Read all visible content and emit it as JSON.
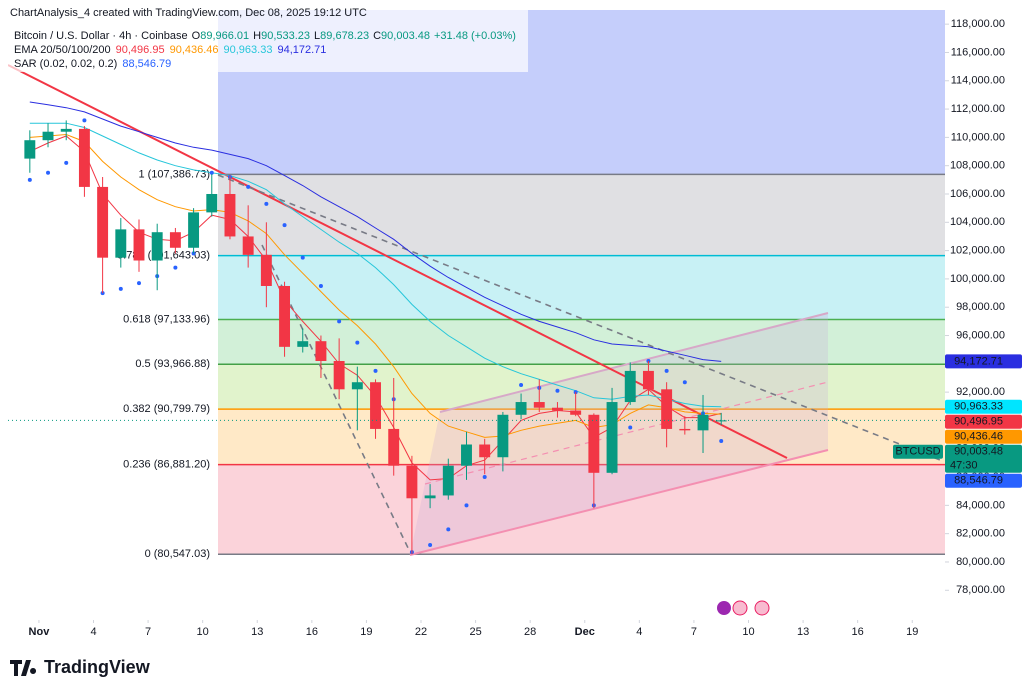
{
  "header": {
    "created": "ChartAnalysis_4 created with TradingView.com, Dec 08, 2025 19:12 UTC"
  },
  "chart_data": {
    "type": "candlestick",
    "title": "Bitcoin / U.S. Dollar · 4h · Coinbase",
    "ohlc_legend": [
      [
        "O",
        "89,966.01"
      ],
      [
        "H",
        "90,533.23"
      ],
      [
        "L",
        "89,678.23"
      ],
      [
        "C",
        "90,003.48"
      ]
    ],
    "change": "+31.48 (+0.03%)",
    "ema_legend": "EMA 20/50/100/200",
    "sar_legend": "SAR (0.02, 0.02, 0.2)",
    "up_color": "#089981",
    "down_color": "#f23645",
    "x": [
      -0.5,
      0.5,
      1.5,
      2.5,
      3.5,
      4.5,
      5.5,
      6.5,
      7.5,
      8.5,
      9.5,
      10.5,
      11.5,
      12.5,
      13.5,
      14.5,
      15.5,
      16.5,
      17.5,
      18.5,
      19.5,
      20.5,
      21.5,
      22.5,
      23.5,
      24.5,
      25.5,
      26.5,
      27.5,
      28.5,
      29.5,
      30.5,
      31.5,
      32.5,
      33.5,
      34.5,
      35.5,
      36.5,
      37.5
    ],
    "open": [
      108500,
      109800,
      110400,
      110600,
      106500,
      101500,
      103500,
      101300,
      103300,
      102200,
      104700,
      106000,
      103000,
      101700,
      99500,
      95200,
      95600,
      94200,
      92200,
      92700,
      89400,
      86800,
      84500,
      84700,
      86800,
      88300,
      87400,
      90400,
      91300,
      90900,
      90700,
      90400,
      86300,
      91300,
      93500,
      92200,
      89400,
      89300,
      89966.01
    ],
    "high": [
      110500,
      111000,
      111200,
      110800,
      107200,
      104300,
      104200,
      103900,
      103600,
      105000,
      107400,
      107300,
      105200,
      104000,
      99800,
      96500,
      96000,
      95800,
      93800,
      92900,
      93000,
      87500,
      85500,
      87300,
      89200,
      88700,
      90600,
      91900,
      92900,
      91300,
      92000,
      90500,
      92300,
      94100,
      94200,
      92700,
      90300,
      91800,
      90533.23
    ],
    "low": [
      107500,
      109300,
      109800,
      105800,
      99000,
      100800,
      100500,
      99200,
      101800,
      101800,
      104400,
      102800,
      100800,
      98000,
      94500,
      94800,
      93000,
      91500,
      89300,
      88700,
      86100,
      80547.03,
      83800,
      84400,
      85800,
      86200,
      86400,
      90100,
      90600,
      90200,
      90300,
      83800,
      86200,
      91100,
      91800,
      88100,
      89000,
      87700,
      89678.23
    ],
    "close": [
      109800,
      110400,
      110600,
      106500,
      101500,
      103500,
      101300,
      103300,
      102200,
      104700,
      106000,
      103000,
      101700,
      99500,
      95200,
      95600,
      94200,
      92200,
      92700,
      89400,
      86800,
      84500,
      84700,
      86800,
      88300,
      87400,
      90400,
      91300,
      90900,
      90700,
      90400,
      86300,
      91300,
      93500,
      92200,
      89400,
      89300,
      90400,
      90003.48
    ],
    "series": [
      {
        "color": "#f23645",
        "last_label": "90,496.95",
        "values": [
          109000,
          109600,
          110100,
          109000,
          106000,
          104500,
          103300,
          102800,
          102700,
          103300,
          104500,
          104200,
          103000,
          101300,
          98500,
          97000,
          95600,
          94000,
          93200,
          91700,
          89500,
          87000,
          85800,
          85900,
          86800,
          87200,
          88600,
          90000,
          90500,
          90700,
          90600,
          88800,
          89500,
          91400,
          92200,
          91000,
          90200,
          90200,
          90496.95
        ]
      },
      {
        "color": "#ff9800",
        "last_label": "90,436.46",
        "values": [
          110000,
          110100,
          110200,
          109700,
          108300,
          107200,
          106300,
          105600,
          105100,
          104800,
          104900,
          104700,
          104100,
          103200,
          101700,
          100400,
          99100,
          97800,
          96700,
          95400,
          93800,
          91900,
          90500,
          89600,
          89200,
          88800,
          88900,
          89300,
          89600,
          89800,
          90000,
          89500,
          89700,
          90500,
          91100,
          90900,
          90600,
          90500,
          90436.46
        ]
      },
      {
        "color": "#26c6da",
        "last_label": "90,963.33",
        "values": [
          111000,
          111000,
          111000,
          110700,
          110100,
          109500,
          108900,
          108400,
          108000,
          107700,
          107500,
          107300,
          106900,
          106300,
          105300,
          104400,
          103500,
          102600,
          101800,
          100800,
          99600,
          98200,
          97000,
          96000,
          95200,
          94400,
          93800,
          93300,
          92900,
          92500,
          92100,
          91600,
          91500,
          91700,
          91800,
          91500,
          91200,
          91000,
          90963.33
        ]
      },
      {
        "color": "#2a2ee0",
        "last_label": "94,172.71",
        "values": [
          112500,
          112300,
          112100,
          111800,
          111300,
          110800,
          110400,
          110000,
          109600,
          109300,
          109100,
          108800,
          108500,
          108000,
          107300,
          106600,
          105800,
          105100,
          104400,
          103600,
          102800,
          101800,
          100900,
          100100,
          99400,
          98700,
          98100,
          97500,
          97000,
          96600,
          96200,
          95700,
          95400,
          95300,
          95200,
          94900,
          94600,
          94300,
          94172.71
        ]
      },
      {
        "color": "#2962ff",
        "style": "dots",
        "last_label": "88,546.79",
        "values": [
          107000,
          107500,
          108200,
          111200,
          99000,
          99300,
          99700,
          100200,
          100800,
          101800,
          107500,
          107200,
          106500,
          105300,
          103800,
          101500,
          99500,
          97000,
          95500,
          93500,
          91500,
          80700,
          81200,
          82300,
          84000,
          86000,
          88700,
          92500,
          92300,
          92100,
          92000,
          84000,
          86500,
          89500,
          94200,
          93500,
          92700,
          90500,
          88546.79
        ]
      }
    ],
    "fib": [
      {
        "label": "1 (107,386.73)",
        "value": 107386.73,
        "color": "#787b86"
      },
      {
        "label": "0.786 (101,643.03)",
        "value": 101643.03,
        "color": "#00bcd4"
      },
      {
        "label": "0.618 (97,133.96)",
        "value": 97133.96,
        "color": "#4caf50"
      },
      {
        "label": "0.5 (93,966.88)",
        "value": 93966.88,
        "color": "#43a047"
      },
      {
        "label": "0.382 (90,799.79)",
        "value": 90799.79,
        "color": "#ff9800"
      },
      {
        "label": "0.236 (86,881.20)",
        "value": 86881.2,
        "color": "#f23645"
      },
      {
        "label": "0 (80,547.03)",
        "value": 80547.03,
        "color": "#787b86"
      }
    ],
    "symbol_tag": "BTCUSD",
    "last_price_label": "90,003.48",
    "countdown": "47:30",
    "xlim": [
      -1.7,
      49.8
    ],
    "xticks": [
      {
        "value": 0,
        "label": "Nov"
      },
      {
        "value": 3,
        "label": "4"
      },
      {
        "value": 6,
        "label": "7"
      },
      {
        "value": 9,
        "label": "10"
      },
      {
        "value": 12,
        "label": "13"
      },
      {
        "value": 15,
        "label": "16"
      },
      {
        "value": 18,
        "label": "19"
      },
      {
        "value": 21,
        "label": "22"
      },
      {
        "value": 24,
        "label": "25"
      },
      {
        "value": 27,
        "label": "28"
      },
      {
        "value": 30,
        "label": "Dec"
      },
      {
        "value": 33,
        "label": "4"
      },
      {
        "value": 36,
        "label": "7"
      },
      {
        "value": 39,
        "label": "10"
      },
      {
        "value": 42,
        "label": "13"
      },
      {
        "value": 45,
        "label": "16"
      },
      {
        "value": 48,
        "label": "19"
      }
    ],
    "ylim": [
      75900,
      119000
    ],
    "yticks": [
      {
        "value": 78000,
        "label": "78,000.00"
      },
      {
        "value": 80000,
        "label": "80,000.00"
      },
      {
        "value": 82000,
        "label": "82,000.00"
      },
      {
        "value": 84000,
        "label": "84,000.00"
      },
      {
        "value": 86000,
        "label": "86,000.00"
      },
      {
        "value": 88000,
        "label": "88,000.00"
      },
      {
        "value": 90000,
        "label": "90,000.00"
      },
      {
        "value": 92000,
        "label": "92,000.00"
      },
      {
        "value": 94000,
        "label": "94,000.00"
      },
      {
        "value": 96000,
        "label": "96,000.00"
      },
      {
        "value": 98000,
        "label": "98,000.00"
      },
      {
        "value": 100000,
        "label": "100,000.00"
      },
      {
        "value": 102000,
        "label": "102,000.00"
      },
      {
        "value": 104000,
        "label": "104,000.00"
      },
      {
        "value": 106000,
        "label": "106,000.00"
      },
      {
        "value": 108000,
        "label": "108,000.00"
      },
      {
        "value": 110000,
        "label": "110,000.00"
      },
      {
        "value": 112000,
        "label": "112,000.00"
      },
      {
        "value": 114000,
        "label": "114,000.00"
      },
      {
        "value": 116000,
        "label": "116,000.00"
      },
      {
        "value": 118000,
        "label": "118,000.00"
      }
    ],
    "watermark": "TradingView"
  }
}
